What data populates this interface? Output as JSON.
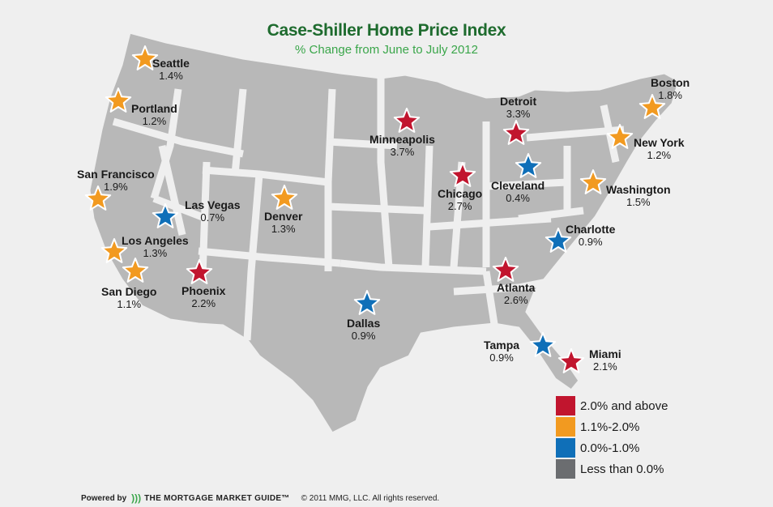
{
  "title": "Case-Shiller Home Price Index",
  "subtitle": "% Change from June to July 2012",
  "colors": {
    "background": "#efefef",
    "land": "#b8b8b8",
    "state_border": "#efefef",
    "red": "#c1152e",
    "orange": "#f29a20",
    "blue": "#0f6fb8",
    "gray": "#6b6d70",
    "title": "#1e6b2e",
    "subtitle": "#3aa64a"
  },
  "cities": [
    {
      "name": "Seattle",
      "value": "1.4%",
      "category": "orange"
    },
    {
      "name": "Portland",
      "value": "1.2%",
      "category": "orange"
    },
    {
      "name": "San Francisco",
      "value": "1.9%",
      "category": "orange"
    },
    {
      "name": "Las Vegas",
      "value": "0.7%",
      "category": "blue"
    },
    {
      "name": "Los Angeles",
      "value": "1.3%",
      "category": "orange"
    },
    {
      "name": "San Diego",
      "value": "1.1%",
      "category": "orange"
    },
    {
      "name": "Phoenix",
      "value": "2.2%",
      "category": "red"
    },
    {
      "name": "Denver",
      "value": "1.3%",
      "category": "orange"
    },
    {
      "name": "Minneapolis",
      "value": "3.7%",
      "category": "red"
    },
    {
      "name": "Dallas",
      "value": "0.9%",
      "category": "blue"
    },
    {
      "name": "Chicago",
      "value": "2.7%",
      "category": "red"
    },
    {
      "name": "Detroit",
      "value": "3.3%",
      "category": "red"
    },
    {
      "name": "Cleveland",
      "value": "0.4%",
      "category": "blue"
    },
    {
      "name": "Atlanta",
      "value": "2.6%",
      "category": "red"
    },
    {
      "name": "Tampa",
      "value": "0.9%",
      "category": "blue"
    },
    {
      "name": "Miami",
      "value": "2.1%",
      "category": "red"
    },
    {
      "name": "Charlotte",
      "value": "0.9%",
      "category": "blue"
    },
    {
      "name": "Washington",
      "value": "1.5%",
      "category": "orange"
    },
    {
      "name": "New York",
      "value": "1.2%",
      "category": "orange"
    },
    {
      "name": "Boston",
      "value": "1.8%",
      "category": "orange"
    }
  ],
  "legend": [
    {
      "label": "2.0% and above",
      "category": "red"
    },
    {
      "label": "1.1%-2.0%",
      "category": "orange"
    },
    {
      "label": "0.0%-1.0%",
      "category": "blue"
    },
    {
      "label": "Less than 0.0%",
      "category": "gray"
    }
  ],
  "footer": {
    "powered_by": "Powered by",
    "brand": "THE MORTGAGE MARKET GUIDE™",
    "copyright": "© 2011 MMG, LLC. All rights reserved."
  }
}
